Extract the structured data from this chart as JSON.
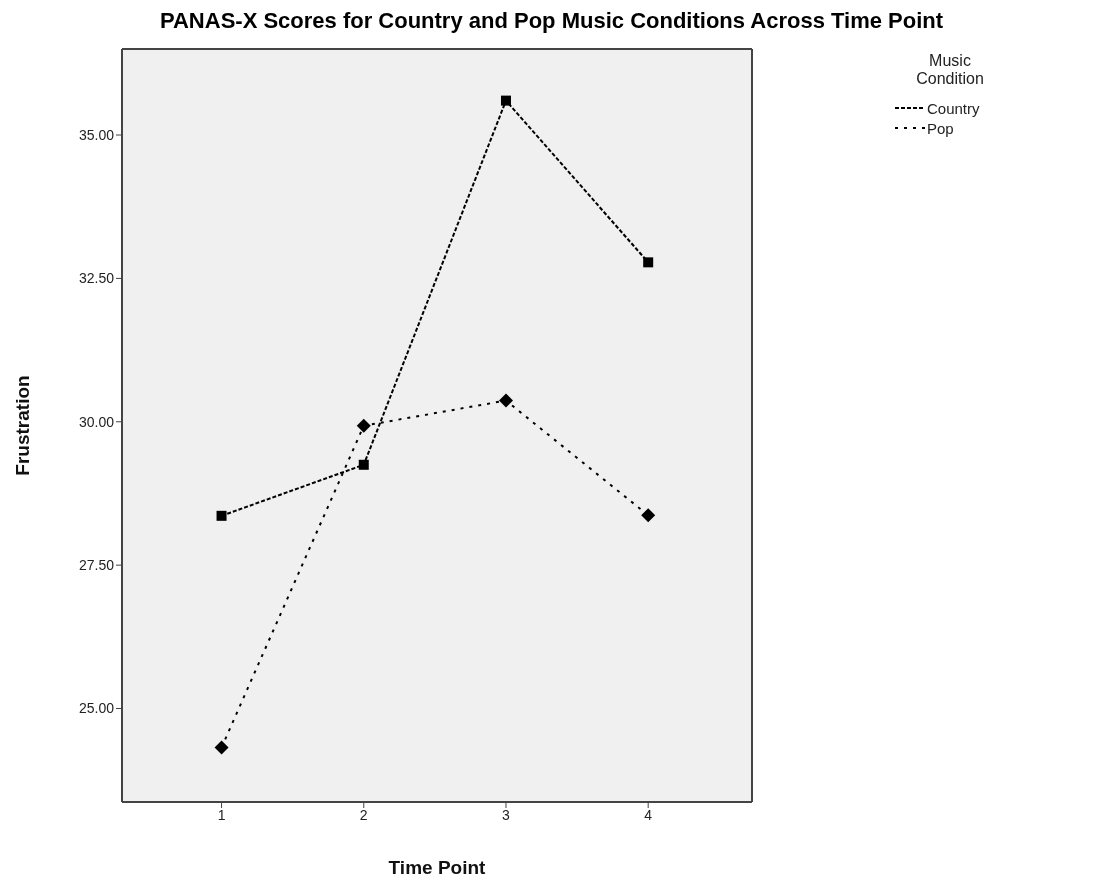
{
  "chart_data": {
    "type": "line",
    "title": "PANAS-X Scores for Country and Pop Music Conditions Across Time Point",
    "xlabel": "Time Point",
    "ylabel": "Frustration",
    "legend_title": "Music Condition",
    "x": [
      1,
      2,
      3,
      4
    ],
    "xlim": [
      0.3,
      4.73
    ],
    "xticks": [
      1,
      2,
      3,
      4
    ],
    "ylim": [
      23.37,
      36.5
    ],
    "yticks": [
      {
        "value": 25,
        "label": "25.00"
      },
      {
        "value": 27.5,
        "label": "27.50"
      },
      {
        "value": 30,
        "label": "30.00"
      },
      {
        "value": 32.5,
        "label": "32.50"
      },
      {
        "value": 35,
        "label": "35.00"
      }
    ],
    "grid": false,
    "legend": "top right",
    "series": [
      {
        "name": "Country",
        "color": "#000000",
        "marker": "square",
        "line_style": "dashed",
        "values": [
          28.36,
          29.25,
          35.6,
          32.78
        ]
      },
      {
        "name": "Pop",
        "color": "#000000",
        "marker": "diamond",
        "line_style": "dotted",
        "values": [
          24.32,
          29.93,
          30.37,
          28.37
        ]
      }
    ]
  }
}
